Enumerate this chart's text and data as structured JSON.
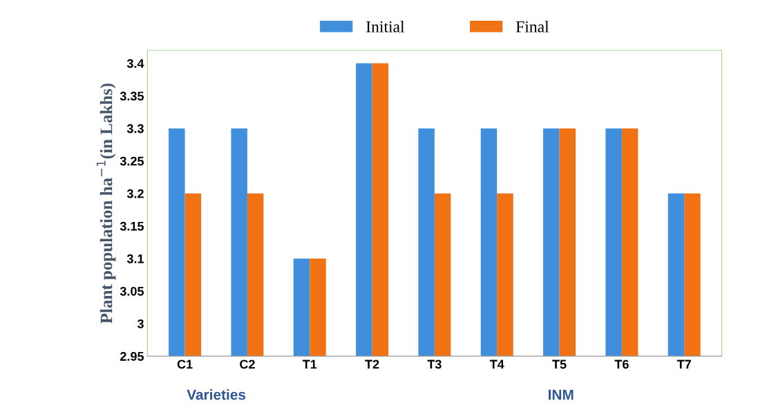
{
  "chart_data": {
    "type": "bar",
    "ylabel": "Plant population ha$^{−1}$(in Lakhs)",
    "categories": [
      "C1",
      "C2",
      "T1",
      "T2",
      "T3",
      "T4",
      "T5",
      "T6",
      "T7"
    ],
    "series": [
      {
        "name": "Initial",
        "color": "#3f8fdc",
        "values": [
          3.3,
          3.3,
          3.1,
          3.4,
          3.3,
          3.3,
          3.3,
          3.3,
          3.2
        ]
      },
      {
        "name": "Final",
        "color": "#f07212",
        "values": [
          3.2,
          3.2,
          3.1,
          3.4,
          3.2,
          3.2,
          3.3,
          3.3,
          3.2
        ]
      }
    ],
    "ylim": [
      2.95,
      3.42
    ],
    "yticks": [
      2.95,
      3,
      3.05,
      3.1,
      3.15,
      3.2,
      3.25,
      3.3,
      3.35,
      3.4
    ],
    "grid": false,
    "legend": "top",
    "annotations": [
      "Varieties",
      "INM"
    ]
  }
}
